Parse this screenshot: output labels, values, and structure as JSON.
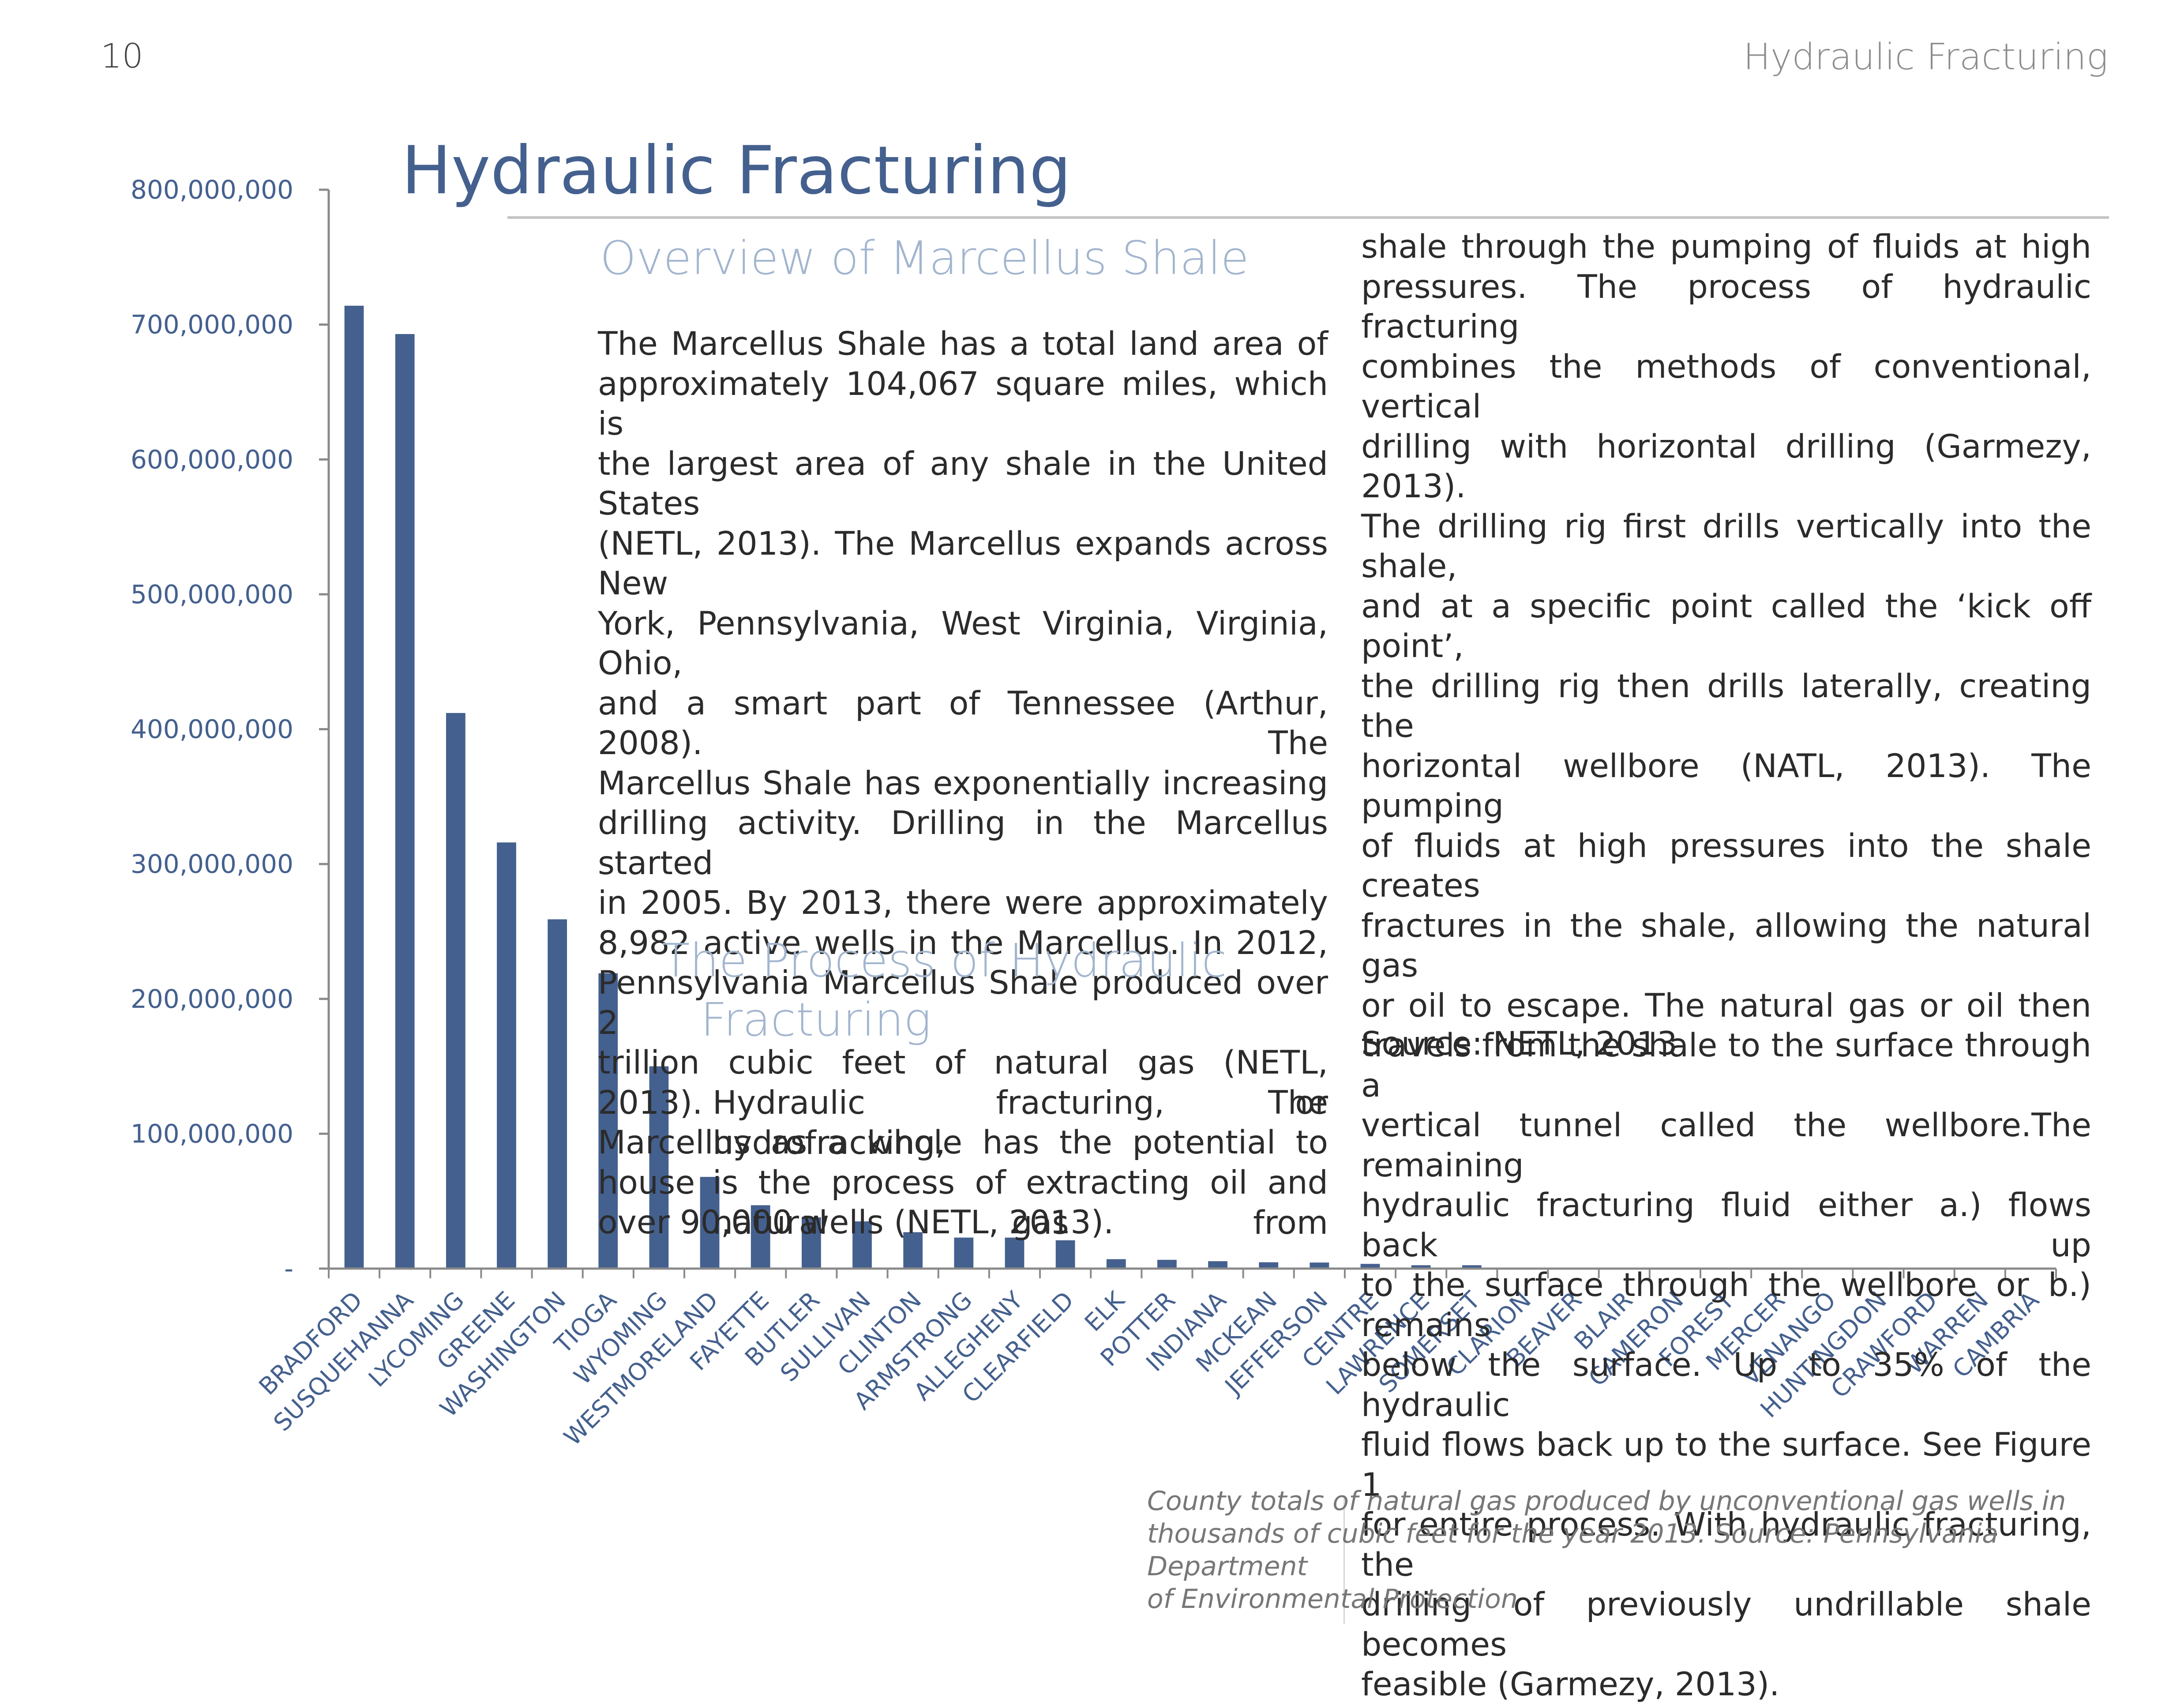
{
  "header": {
    "page_number": "10",
    "running_title": "Hydraulic Fracturing"
  },
  "main_title": "Hydraulic Fracturing",
  "sections": {
    "overview_heading": "Overview of Marcellus Shale",
    "overview_lines": [
      "The Marcellus Shale has a total land area of",
      "approximately 104,067 square miles, which is",
      "the largest area of any shale in the United States",
      "(NETL, 2013). The Marcellus expands across New",
      "York, Pennsylvania, West Virginia, Virginia, Ohio,",
      "and a smart part of Tennessee (Arthur, 2008). The",
      "Marcellus Shale has exponentially increasing",
      "drilling activity. Drilling in the Marcellus started",
      "in 2005. By 2013, there were approximately",
      "8,982 active wells in the Marcellus. In 2012,",
      "Pennsylvania Marcellus Shale produced over 2",
      "trillion cubic feet of natural gas (NETL, 2013). The",
      "Marcellus as a whole has the potential to house",
      "over 90,000 wells (NETL, 2013)."
    ],
    "process_heading_line1": "The Process of Hydraulic",
    "process_heading_line2": "Fracturing",
    "process_lines": [
      "Hydraulic fracturing, or hydrofracking,",
      "is the process of extracting oil and",
      "natural gas from"
    ],
    "right_lines": [
      "shale through the pumping of fluids at high",
      "pressures. The process of hydraulic fracturing",
      "combines the methods of conventional, vertical",
      "drilling with horizontal drilling (Garmezy, 2013).",
      "The drilling rig first drills vertically into the shale,",
      "and at a specific point called the ‘kick off point’,",
      "the drilling rig then drills laterally, creating the",
      "horizontal wellbore (NATL, 2013). The pumping",
      "of fluids at high pressures into the shale creates",
      "fractures in the shale, allowing the natural gas",
      "or oil to escape. The natural gas or oil then",
      "travels from the shale to the surface through a",
      "vertical tunnel called the wellbore.The remaining",
      "hydraulic fracturing fluid either a.) flows back up",
      "to the surface through the wellbore or b.) remains",
      "below the surface. Up to 35% of the hydraulic",
      "fluid flows back up to the surface. See Figure 1",
      "for entire process. With hydraulic fracturing, the",
      "drilling of previously undrillable shale becomes",
      "feasible (Garmezy, 2013)."
    ],
    "source_line": "Source: NETL, 2013"
  },
  "caption_lines": [
    "County totals of natural gas produced by unconventional gas wells in",
    "thousands of cubic feet for the year 2013. Source: Pennsylvania Department",
    "of Environmental Protection"
  ],
  "colors": {
    "bar": "#44608e",
    "axis": "#8a8a8a",
    "tick_text": "#44608e"
  },
  "chart_data": {
    "type": "bar",
    "categories": [
      "BRADFORD",
      "SUSQUEHANNA",
      "LYCOMING",
      "GREENE",
      "WASHINGTON",
      "TIOGA",
      "WYOMING",
      "WESTMORELAND",
      "FAYETTE",
      "BUTLER",
      "SULLIVAN",
      "CLINTON",
      "ARMSTRONG",
      "ALLEGHENY",
      "CLEARFIELD",
      "ELK",
      "POTTER",
      "INDIANA",
      "MCKEAN",
      "JEFFERSON",
      "CENTRE",
      "LAWRENCE",
      "SOMERSET",
      "CLARION",
      "BEAVER",
      "BLAIR",
      "CAMERON",
      "FOREST",
      "MERCER",
      "VENANGO",
      "HUNTINGDON",
      "CRAWFORD",
      "WARREN",
      "CAMBRIA"
    ],
    "values": [
      714000000,
      693000000,
      412000000,
      316000000,
      259000000,
      219000000,
      150000000,
      68000000,
      47000000,
      38000000,
      35000000,
      27000000,
      23000000,
      23000000,
      21000000,
      7000000,
      6500000,
      5500000,
      4700000,
      4500000,
      3500000,
      2500000,
      2500000,
      800000,
      700000,
      600000,
      600000,
      500000,
      500000,
      400000,
      400000,
      300000,
      300000,
      200000
    ],
    "ylim": [
      0,
      800000000
    ],
    "yticks": [
      {
        "value": 800000000,
        "label": "800,000,000"
      },
      {
        "value": 700000000,
        "label": "700,000,000"
      },
      {
        "value": 600000000,
        "label": "600,000,000"
      },
      {
        "value": 500000000,
        "label": "500,000,000"
      },
      {
        "value": 400000000,
        "label": "400,000,000"
      },
      {
        "value": 300000000,
        "label": "300,000,000"
      },
      {
        "value": 200000000,
        "label": "200,000,000"
      },
      {
        "value": 100000000,
        "label": "100,000,000"
      },
      {
        "value": 0,
        "label": "-"
      }
    ],
    "title": "",
    "xlabel": "",
    "ylabel": "",
    "grid": false,
    "legend": "none"
  }
}
